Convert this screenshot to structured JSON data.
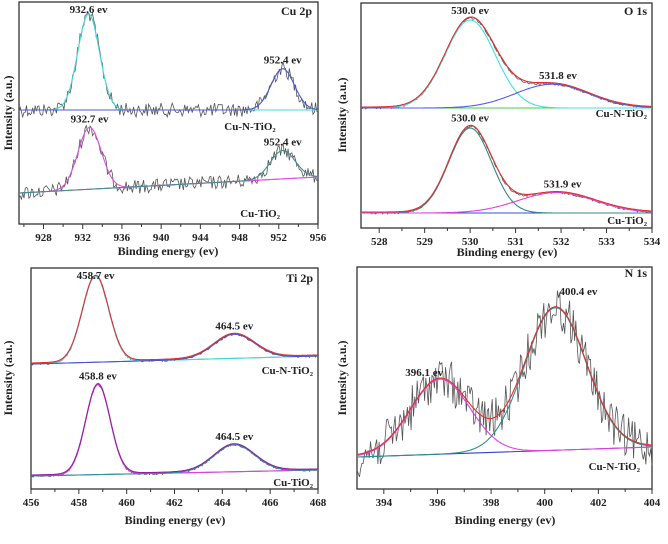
{
  "chart_data": [
    {
      "type": "line",
      "title": "Cu 2p",
      "xlabel": "Binding energy (ev)",
      "ylabel": "Intensity (a.u.)",
      "xlim": [
        925.5,
        956
      ],
      "xticks": [
        928,
        932,
        936,
        940,
        944,
        948,
        952,
        956
      ],
      "x_reversed": false,
      "grid": false,
      "series": [
        {
          "name": "Cu-N-TiO2",
          "label": "Cu-N-TiO₂",
          "peaks": [
            {
              "center": 932.6,
              "label": "932.6 ev",
              "height": 1.0,
              "fwhm": 2.6,
              "color": "#40d8e0"
            },
            {
              "center": 952.4,
              "label": "952.4 ev",
              "height": 0.43,
              "fwhm": 2.8,
              "color": "#4a5ad8"
            }
          ],
          "background_color": "#4a6ad8",
          "noise": "high"
        },
        {
          "name": "Cu-TiO2",
          "label": "Cu-TiO₂",
          "peaks": [
            {
              "center": 932.7,
              "label": "932.7 ev",
              "height": 0.72,
              "fwhm": 2.8,
              "color": "#e050e0"
            },
            {
              "center": 952.4,
              "label": "952.4 ev",
              "height": 0.33,
              "fwhm": 3.0,
              "color": "#409090"
            }
          ],
          "background_color": "#e050e0",
          "noise": "high"
        }
      ]
    },
    {
      "type": "line",
      "title": "O 1s",
      "xlabel": "Binding energy (ev)",
      "ylabel": "Intensity (a.u.)",
      "xlim": [
        527.6,
        534
      ],
      "xticks": [
        528,
        529,
        530,
        531,
        532,
        533,
        534
      ],
      "x_reversed": false,
      "grid": false,
      "series": [
        {
          "name": "Cu-N-TiO2",
          "label": "Cu-N-TiO₂",
          "peaks": [
            {
              "center": 530.0,
              "label": "530.0 ev",
              "height": 1.0,
              "fwhm": 1.3,
              "color": "#40e0e8"
            },
            {
              "center": 531.8,
              "label": "531.8 ev",
              "height": 0.27,
              "fwhm": 1.9,
              "color": "#5060e0"
            }
          ],
          "envelope_color": "#e03030",
          "background_color": "#40d040",
          "noise": "low"
        },
        {
          "name": "Cu-TiO2",
          "label": "Cu-TiO₂",
          "peaks": [
            {
              "center": 530.0,
              "label": "530.0 ev",
              "height": 1.0,
              "fwhm": 1.1,
              "color": "#308888"
            },
            {
              "center": 531.9,
              "label": "531.9 ev",
              "height": 0.24,
              "fwhm": 2.0,
              "color": "#e040e0"
            }
          ],
          "envelope_color": "#e03030",
          "background_color": "#3050e0",
          "noise": "low"
        }
      ]
    },
    {
      "type": "line",
      "title": "Ti 2p",
      "xlabel": "Binding energy (ev)",
      "ylabel": "Intensity (a.u.)",
      "xlim": [
        456,
        468
      ],
      "xticks": [
        456,
        458,
        460,
        462,
        464,
        466,
        468
      ],
      "x_reversed": false,
      "grid": false,
      "series": [
        {
          "name": "Cu-N-TiO2",
          "label": "Cu-N-TiO₂",
          "peaks": [
            {
              "center": 458.7,
              "label": "458.7 ev",
              "height": 1.0,
              "fwhm": 1.3,
              "color": "#40d8e0"
            },
            {
              "center": 464.5,
              "label": "464.5 ev",
              "height": 0.28,
              "fwhm": 2.0,
              "color": "#5050d0"
            }
          ],
          "envelope_color": "#e03030",
          "background_color": "#40c8c8",
          "noise": "low"
        },
        {
          "name": "Cu-TiO2",
          "label": "Cu-TiO₂",
          "peaks": [
            {
              "center": 458.8,
              "label": "458.8 ev",
              "height": 1.0,
              "fwhm": 1.2,
              "color": "#e040e0"
            },
            {
              "center": 464.5,
              "label": "464.5 ev",
              "height": 0.3,
              "fwhm": 2.0,
              "color": "#3090a0"
            }
          ],
          "envelope_color": "#9020a0",
          "background_color": "#5080d0",
          "noise": "low"
        }
      ]
    },
    {
      "type": "line",
      "title": "N 1s",
      "xlabel": "Binding energy (ev)",
      "ylabel": "Intensity (a.u.)",
      "xlim": [
        393,
        404
      ],
      "xticks": [
        394,
        396,
        398,
        400,
        402,
        404
      ],
      "x_reversed": false,
      "grid": false,
      "series": [
        {
          "name": "Cu-N-TiO2",
          "label": "Cu-N-TiO₂",
          "peaks": [
            {
              "center": 396.1,
              "label": "396.1 ev",
              "height": 0.5,
              "fwhm": 2.6,
              "color": "#e040e0"
            },
            {
              "center": 400.4,
              "label": "400.4 ev",
              "height": 0.95,
              "fwhm": 2.7,
              "color": "#309090"
            }
          ],
          "envelope_color": "#e03030",
          "background_color": "#3040d0",
          "noise": "very-high"
        }
      ]
    }
  ]
}
